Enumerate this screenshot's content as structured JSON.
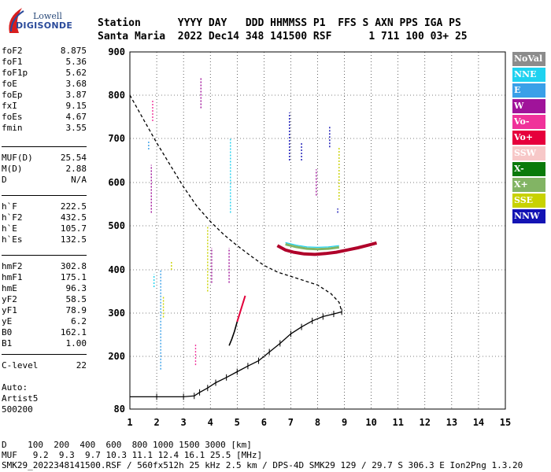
{
  "logo": {
    "line1": "Lowell",
    "line2": "DIGISONDE"
  },
  "header": {
    "line1": "Station      YYYY DAY   DDD HHMMSS P1  FFS S AXN PPS IGA PS",
    "line2": "Santa Maria  2022 Dec14 348 141500 RSF      1 711 100 03+ 25"
  },
  "params": [
    {
      "k": "foF2",
      "v": "8.875"
    },
    {
      "k": "foF1",
      "v": "5.36"
    },
    {
      "k": "foF1p",
      "v": "5.62"
    },
    {
      "k": "foE",
      "v": "3.68"
    },
    {
      "k": "foEp",
      "v": "3.87"
    },
    {
      "k": "fxI",
      "v": "9.15"
    },
    {
      "k": "foEs",
      "v": "4.67"
    },
    {
      "k": "fmin",
      "v": "3.55"
    },
    {
      "k": "MUF(D)",
      "v": "25.54"
    },
    {
      "k": "M(D)",
      "v": "2.88"
    },
    {
      "k": "D",
      "v": "N/A"
    },
    {
      "k": "h`F",
      "v": "222.5"
    },
    {
      "k": "h`F2",
      "v": "432.5"
    },
    {
      "k": "h`E",
      "v": "105.7"
    },
    {
      "k": "h`Es",
      "v": "132.5"
    },
    {
      "k": "hmF2",
      "v": "302.8"
    },
    {
      "k": "hmF1",
      "v": "175.1"
    },
    {
      "k": "hmE",
      "v": "96.3"
    },
    {
      "k": "yF2",
      "v": "58.5"
    },
    {
      "k": "yF1",
      "v": "78.9"
    },
    {
      "k": "yE",
      "v": "6.2"
    },
    {
      "k": "B0",
      "v": "162.1"
    },
    {
      "k": "B1",
      "v": "1.00"
    },
    {
      "k": "C-level",
      "v": "22"
    }
  ],
  "auto": [
    "Auto:",
    "Artist5",
    "500200"
  ],
  "legend": [
    {
      "label": "NoVal",
      "bg": "#8c8c8c",
      "fg": "#ffffff"
    },
    {
      "label": "NNE",
      "bg": "#1fd2f0",
      "fg": "#ffffff"
    },
    {
      "label": "E",
      "bg": "#3aa0e8",
      "fg": "#ffffff"
    },
    {
      "label": "W",
      "bg": "#a0139a",
      "fg": "#ffffff"
    },
    {
      "label": "Vo-",
      "bg": "#f0329a",
      "fg": "#ffffff"
    },
    {
      "label": "Vo+",
      "bg": "#e6003c",
      "fg": "#ffffff"
    },
    {
      "label": "SSW",
      "bg": "#f7c8c8",
      "fg": "#ffffff"
    },
    {
      "label": "X-",
      "bg": "#0a7a0a",
      "fg": "#ffffff"
    },
    {
      "label": "X+",
      "bg": "#82b464",
      "fg": "#ffffff"
    },
    {
      "label": "SSE",
      "bg": "#c8d200",
      "fg": "#ffffff"
    },
    {
      "label": "NNW",
      "bg": "#1414b4",
      "fg": "#ffffff"
    }
  ],
  "footer": {
    "line1": "D    100  200  400  600  800 1000 1500 3000 [km]",
    "line2": "MUF   9.2  9.3  9.7 10.3 11.1 12.4 16.1 25.5 [MHz]",
    "line3": "SMK29_2022348141500.RSF / 560fx512h 25 kHz 2.5 km / DPS-4D SMK29 129 / 29.7 S 306.3 E Ion2Png 1.3.20"
  },
  "chart_data": {
    "type": "scatter",
    "xlim": [
      1,
      15
    ],
    "ylim": [
      80,
      900
    ],
    "xticks": [
      "1",
      "2",
      "3",
      "4",
      "5",
      "6",
      "7",
      "8",
      "9",
      "10",
      "11",
      "12",
      "13",
      "14",
      "15"
    ],
    "yticks": [
      "80",
      "200",
      "300",
      "400",
      "500",
      "600",
      "700",
      "800",
      "900"
    ],
    "profile": [
      [
        1.0,
        108
      ],
      [
        2.0,
        108
      ],
      [
        3.0,
        108
      ],
      [
        3.4,
        110
      ],
      [
        3.6,
        118
      ],
      [
        3.9,
        128
      ],
      [
        4.2,
        140
      ],
      [
        4.6,
        152
      ],
      [
        5.0,
        165
      ],
      [
        5.4,
        178
      ],
      [
        5.8,
        190
      ],
      [
        6.2,
        210
      ],
      [
        6.6,
        230
      ],
      [
        7.0,
        252
      ],
      [
        7.4,
        268
      ],
      [
        7.8,
        282
      ],
      [
        8.2,
        292
      ],
      [
        8.6,
        298
      ],
      [
        8.9,
        303
      ]
    ],
    "mirror_profile": [
      [
        1.0,
        800
      ],
      [
        1.5,
        745
      ],
      [
        2.0,
        690
      ],
      [
        2.5,
        640
      ],
      [
        3.0,
        590
      ],
      [
        3.5,
        545
      ],
      [
        4.0,
        510
      ],
      [
        4.5,
        480
      ],
      [
        5.0,
        455
      ],
      [
        5.5,
        432
      ],
      [
        6.0,
        410
      ],
      [
        6.5,
        395
      ],
      [
        7.0,
        385
      ],
      [
        7.5,
        375
      ],
      [
        8.0,
        365
      ],
      [
        8.5,
        345
      ],
      [
        8.8,
        325
      ],
      [
        8.9,
        303
      ]
    ],
    "f2_trace": [
      [
        6.5,
        455
      ],
      [
        6.8,
        445
      ],
      [
        7.1,
        440
      ],
      [
        7.5,
        436
      ],
      [
        7.9,
        435
      ],
      [
        8.3,
        437
      ],
      [
        8.7,
        440
      ],
      [
        9.1,
        445
      ],
      [
        9.5,
        450
      ],
      [
        9.9,
        456
      ],
      [
        10.2,
        461
      ]
    ],
    "f2_trace_upper": [
      [
        6.8,
        458
      ],
      [
        7.2,
        452
      ],
      [
        7.6,
        448
      ],
      [
        8.0,
        447
      ],
      [
        8.4,
        448
      ],
      [
        8.8,
        451
      ]
    ],
    "f1_trace": [
      [
        4.7,
        225
      ],
      [
        4.8,
        240
      ],
      [
        4.9,
        258
      ],
      [
        5.0,
        280
      ],
      [
        5.1,
        300
      ],
      [
        5.2,
        320
      ],
      [
        5.3,
        340
      ]
    ],
    "verticals": [
      {
        "x": 1.9,
        "y1": 360,
        "y2": 390,
        "color": "#1fd2f0"
      },
      {
        "x": 2.15,
        "y1": 170,
        "y2": 400,
        "color": "#3aa0e8"
      },
      {
        "x": 2.25,
        "y1": 290,
        "y2": 340,
        "color": "#c8d200"
      },
      {
        "x": 1.8,
        "y1": 530,
        "y2": 640,
        "color": "#a0139a"
      },
      {
        "x": 1.7,
        "y1": 675,
        "y2": 695,
        "color": "#3aa0e8"
      },
      {
        "x": 1.85,
        "y1": 740,
        "y2": 790,
        "color": "#f0329a"
      },
      {
        "x": 2.55,
        "y1": 400,
        "y2": 420,
        "color": "#c8d200"
      },
      {
        "x": 3.45,
        "y1": 180,
        "y2": 230,
        "color": "#f0329a"
      },
      {
        "x": 3.9,
        "y1": 350,
        "y2": 500,
        "color": "#c8d200"
      },
      {
        "x": 4.05,
        "y1": 370,
        "y2": 450,
        "color": "#a0139a"
      },
      {
        "x": 4.7,
        "y1": 370,
        "y2": 450,
        "color": "#a0139a"
      },
      {
        "x": 4.75,
        "y1": 530,
        "y2": 700,
        "color": "#1fd2f0"
      },
      {
        "x": 3.65,
        "y1": 770,
        "y2": 840,
        "color": "#a0139a"
      },
      {
        "x": 6.95,
        "y1": 650,
        "y2": 760,
        "color": "#1414b4"
      },
      {
        "x": 7.4,
        "y1": 650,
        "y2": 690,
        "color": "#1414b4"
      },
      {
        "x": 7.95,
        "y1": 570,
        "y2": 630,
        "color": "#a0139a"
      },
      {
        "x": 8.45,
        "y1": 680,
        "y2": 730,
        "color": "#1414b4"
      },
      {
        "x": 8.8,
        "y1": 560,
        "y2": 680,
        "color": "#c8d200"
      },
      {
        "x": 8.75,
        "y1": 530,
        "y2": 540,
        "color": "#1414b4"
      }
    ]
  }
}
